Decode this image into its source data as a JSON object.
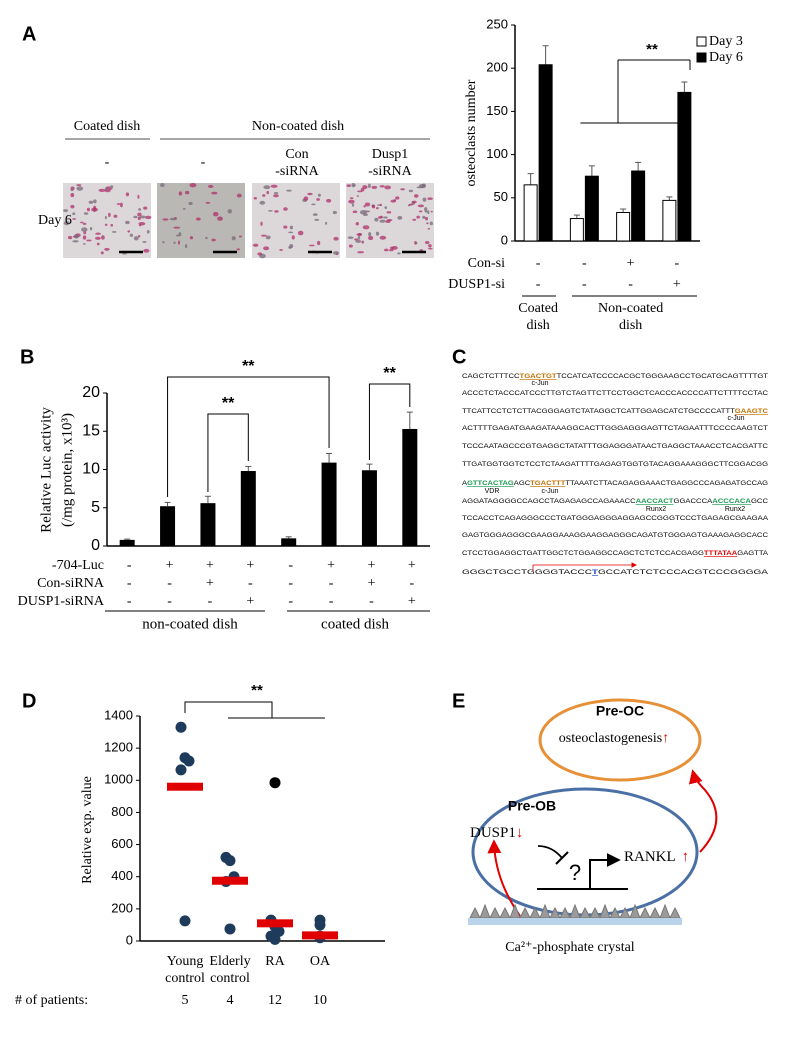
{
  "panel_labels": [
    "A",
    "B",
    "C",
    "D",
    "E"
  ],
  "panel_a_images": {
    "headers": [
      "Coated dish",
      "Non-coated dish"
    ],
    "columns": [
      [
        "-"
      ],
      [
        "-"
      ],
      [
        "Con",
        "-siRNA"
      ],
      [
        "Dusp1",
        "-siRNA"
      ]
    ],
    "row_label": "Day 6"
  },
  "chart_data": [
    {
      "type": "bar",
      "ylabel": "osteoclasts number",
      "ylim": [
        0,
        250
      ],
      "yticks": [
        0,
        50,
        100,
        150,
        200,
        250
      ],
      "series": [
        {
          "name": "Day 3",
          "color": "#ffffff",
          "values": [
            65,
            26,
            33,
            47
          ],
          "errors": [
            13,
            4,
            4,
            4
          ]
        },
        {
          "name": "Day 6",
          "color": "#000000",
          "values": [
            204,
            75,
            81,
            172
          ],
          "errors": [
            22,
            12,
            10,
            12
          ]
        }
      ],
      "conditions": [
        {
          "name": "Con-si",
          "marks": [
            "-",
            "-",
            "+",
            "-"
          ]
        },
        {
          "name": "DUSP1-si",
          "marks": [
            "-",
            "-",
            "-",
            "+"
          ]
        }
      ],
      "groups": [
        [
          "Coated",
          "dish"
        ],
        [
          "Non-coated",
          "dish"
        ]
      ],
      "annotations": [
        {
          "text": "**",
          "color": "#e00000"
        }
      ]
    },
    {
      "type": "bar",
      "ylabel": [
        "Relative Luc activity",
        "(/mg protein, x10³)"
      ],
      "ylim": [
        0,
        20
      ],
      "yticks": [
        0,
        5,
        10,
        15,
        20
      ],
      "color": "#000000",
      "values": [
        0.8,
        5.2,
        5.6,
        9.8,
        1.0,
        10.9,
        9.9,
        15.3
      ],
      "errors": [
        0.1,
        0.5,
        0.9,
        0.6,
        0.2,
        1.2,
        0.8,
        2.2
      ],
      "conditions": [
        {
          "name": "-704-Luc",
          "marks": [
            "-",
            "+",
            "+",
            "+",
            "-",
            "+",
            "+",
            "+"
          ]
        },
        {
          "name": "Con-siRNA",
          "marks": [
            "-",
            "-",
            "+",
            "-",
            "-",
            "-",
            "+",
            "-"
          ]
        },
        {
          "name": "DUSP1-siRNA",
          "marks": [
            "-",
            "-",
            "-",
            "+",
            "-",
            "-",
            "-",
            "+"
          ]
        }
      ],
      "groups": [
        "non-coated dish",
        "coated dish"
      ],
      "group_color": "#c00000",
      "annotations": [
        {
          "text": "**",
          "color": "#000000"
        },
        {
          "text": "**",
          "color": "#000000"
        },
        {
          "text": "**",
          "color": "#000000"
        }
      ]
    },
    {
      "type": "scatter",
      "ylabel": "Relative exp. value",
      "ylim": [
        0,
        1400
      ],
      "yticks": [
        0,
        200,
        400,
        600,
        800,
        1000,
        1200,
        1400
      ],
      "categories": [
        [
          "Young",
          "control"
        ],
        [
          "Elderly",
          "control"
        ],
        [
          "RA"
        ],
        [
          "OA"
        ]
      ],
      "points": [
        [
          1330,
          1140,
          1120,
          1065,
          125
        ],
        [
          520,
          500,
          400,
          370,
          75
        ],
        [
          130,
          90,
          60,
          30,
          10
        ],
        [
          130,
          100,
          30,
          20
        ]
      ],
      "point_color": "#1f3b5c",
      "outliers": [
        [],
        [],
        [
          985
        ],
        []
      ],
      "outlier_color": "#000000",
      "medians": [
        960,
        375,
        110,
        35
      ],
      "median_color": "#e00000",
      "patients_label": "# of patients:",
      "patients": [
        5,
        4,
        12,
        10
      ],
      "annotations": [
        {
          "text": "**",
          "color": "#000000"
        }
      ]
    }
  ],
  "panel_c": {
    "lines": [
      [
        {
          "text": "CAGCTCTTTCC"
        },
        {
          "text": "TGACTGT",
          "color": "#c07000"
        },
        {
          "text": "TCCATCATCCCCACGCTGGGAAGCCTGCATGCAGTTTTGT"
        }
      ],
      [
        {
          "text": "ACCCTCTACCCATCCCTTGTCTAGTTCTTCCTGGCTCACCCACCCCATTCTTTTCCTAC"
        }
      ],
      [
        {
          "text": "TTCATTCCTCTCTTACGGGAGTCTATAGGCTCATTGGAGCATCTGCCCCATTT"
        },
        {
          "text": "GAAGTC",
          "color": "#c07000"
        }
      ],
      [
        {
          "text": "ACTTTTGAGATGAAGATAAAGGCACTTGGGAGGGAGTTCTAGAATTTCCCCAAGTCT"
        }
      ],
      [
        {
          "text": "TCCCAATAGCCCGTGAGGCTATATTTGGAGGGATAACTGAGGCTAAACCTCACGATTC"
        }
      ],
      [
        {
          "text": "TTGATGGTGGTCTCCTCTAAGATTTTGAGAGTGGTGTACAGGAAAGGGCTTCGGACGG"
        }
      ],
      [
        {
          "text": "A"
        },
        {
          "text": "GTTCACTAG",
          "color": "#1a9a50"
        },
        {
          "text": "AGC"
        },
        {
          "text": "TGACTTT",
          "color": "#c07000"
        },
        {
          "text": "TTAAATCTTACAGAGGAAACTGAGGCCCAGAGATGCCAG"
        }
      ],
      [
        {
          "text": "AGGATAGGGGCCAGCCTAGAGAGCCAGAAACC"
        },
        {
          "text": "AACCACT",
          "color": "#1a9a50"
        },
        {
          "text": "GGACCCA"
        },
        {
          "text": "ACCCACA",
          "color": "#1a9a50"
        },
        {
          "text": "GCC"
        }
      ],
      [
        {
          "text": "TCCACCTCAGAGGGCCCTGATGGGAGGGAGGAGCCGGGTCCCTGAGAGCGAAGAA"
        }
      ],
      [
        {
          "text": "GAGTGGGAGGGCGAAGGAAAGGAAGGAGGGCAGATGTGGGAGTGAAAGAGGCACC"
        }
      ],
      [
        {
          "text": "CTCCTGGAGGCTGATTGGCTCTGGAGGCCAGCTCTCTCCACGAGG"
        },
        {
          "text": "TTTATAA",
          "color": "#e00000"
        },
        {
          "text": "GAGTTA"
        }
      ],
      [
        {
          "text": "GGGCTGCCTGGGGTACCC"
        },
        {
          "text": "T",
          "color": "#2050c0"
        },
        {
          "text": "GCCATCTCTCCCACGTCCCGGGGA"
        }
      ]
    ],
    "annotations": [
      {
        "text": "c-Jun",
        "color": "#8b1a1a"
      },
      {
        "text": "c-Jun",
        "color": "#8b1a1a"
      },
      {
        "text": "VDR",
        "color": "#8b1a1a"
      },
      {
        "text": "c-Jun",
        "color": "#8b1a1a"
      },
      {
        "text": "Runx2",
        "color": "#8b1a1a"
      },
      {
        "text": "Runx2",
        "color": "#8b1a1a"
      }
    ]
  },
  "panel_e": {
    "pre_oc": "Pre-OC",
    "osteoclastogenesis": "osteoclastogenesis",
    "up": "↑",
    "pre_ob": "Pre-OB",
    "dusp1": "DUSP1",
    "down": "↓",
    "question": "?",
    "rankl": "RANKL",
    "crystal": "Ca²⁺-phosphate crystal"
  }
}
